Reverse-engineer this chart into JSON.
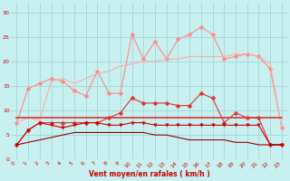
{
  "xlabel": "Vent moyen/en rafales ( km/h )",
  "bg_color": "#c8f0f0",
  "grid_color": "#a8dada",
  "x": [
    0,
    1,
    2,
    3,
    4,
    5,
    6,
    7,
    8,
    9,
    10,
    11,
    12,
    13,
    14,
    15,
    16,
    17,
    18,
    19,
    20,
    21,
    22,
    23
  ],
  "lines": [
    {
      "color": "#ff8888",
      "values": [
        7.5,
        14.5,
        15.5,
        16.5,
        16.0,
        14.0,
        13.0,
        18.0,
        13.5,
        13.5,
        25.5,
        20.5,
        24.0,
        20.5,
        24.5,
        25.5,
        27.0,
        25.5,
        20.5,
        21.0,
        21.5,
        21.0,
        18.5,
        6.5
      ],
      "marker": "D",
      "markersize": 2.5,
      "linewidth": 0.8
    },
    {
      "color": "#ffaaaa",
      "values": [
        7.5,
        8.5,
        8.0,
        16.0,
        16.5,
        15.5,
        16.5,
        17.5,
        18.0,
        19.0,
        19.5,
        20.0,
        20.0,
        20.5,
        20.5,
        21.0,
        21.0,
        21.0,
        21.0,
        21.5,
        21.5,
        21.0,
        19.5,
        6.5
      ],
      "marker": null,
      "markersize": 0,
      "linewidth": 0.8
    },
    {
      "color": "#dd3333",
      "values": [
        3.0,
        6.0,
        7.5,
        7.5,
        7.5,
        7.5,
        7.5,
        7.5,
        8.5,
        9.5,
        12.5,
        11.5,
        11.5,
        11.5,
        11.0,
        11.0,
        13.5,
        12.5,
        7.5,
        9.5,
        8.5,
        8.5,
        3.0,
        3.0
      ],
      "marker": "D",
      "markersize": 2.5,
      "linewidth": 0.8
    },
    {
      "color": "#dd3333",
      "values": [
        8.5,
        8.5,
        8.5,
        8.5,
        8.5,
        8.5,
        8.5,
        8.5,
        8.5,
        8.5,
        8.5,
        8.5,
        8.5,
        8.5,
        8.5,
        8.5,
        8.5,
        8.5,
        8.5,
        8.5,
        8.5,
        8.5,
        8.5,
        8.5
      ],
      "marker": null,
      "markersize": 0,
      "linewidth": 1.2
    },
    {
      "color": "#cc0000",
      "values": [
        3.0,
        6.0,
        7.5,
        7.0,
        6.5,
        7.0,
        7.5,
        7.5,
        7.0,
        7.0,
        7.5,
        7.5,
        7.0,
        7.0,
        7.0,
        7.0,
        7.0,
        7.0,
        7.0,
        7.0,
        7.0,
        7.0,
        3.0,
        3.0
      ],
      "marker": "v",
      "markersize": 2.5,
      "linewidth": 0.8
    },
    {
      "color": "#990000",
      "values": [
        3.0,
        3.5,
        4.0,
        4.5,
        5.0,
        5.5,
        5.5,
        5.5,
        5.5,
        5.5,
        5.5,
        5.5,
        5.0,
        5.0,
        4.5,
        4.0,
        4.0,
        4.0,
        4.0,
        3.5,
        3.5,
        3.0,
        3.0,
        3.0
      ],
      "marker": null,
      "markersize": 0,
      "linewidth": 0.8
    }
  ],
  "ylim": [
    0,
    32
  ],
  "yticks": [
    0,
    5,
    10,
    15,
    20,
    25,
    30
  ],
  "xlim": [
    -0.5,
    23.5
  ],
  "xticks": [
    0,
    1,
    2,
    3,
    4,
    5,
    6,
    7,
    8,
    9,
    10,
    11,
    12,
    13,
    14,
    15,
    16,
    17,
    18,
    19,
    20,
    21,
    22,
    23
  ]
}
